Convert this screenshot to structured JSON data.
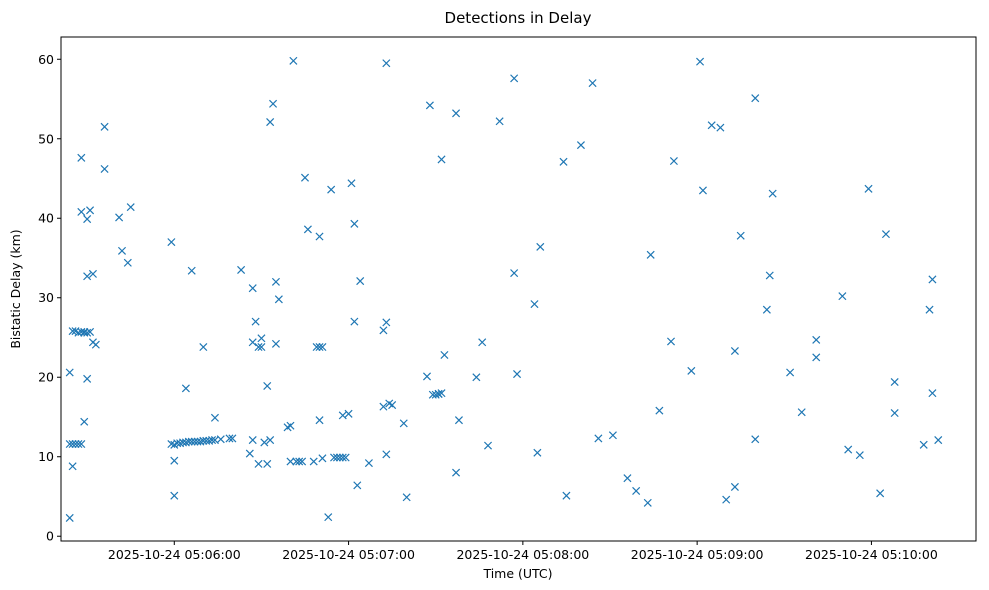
{
  "chart_data": {
    "type": "scatter",
    "title": "Detections in Delay",
    "xlabel": "Time (UTC)",
    "ylabel": "Bistatic Delay (km)",
    "x_tick_labels": [
      "2025-10-24 05:06:00",
      "2025-10-24 05:07:00",
      "2025-10-24 05:08:00",
      "2025-10-24 05:09:00",
      "2025-10-24 05:10:00"
    ],
    "x_ticks": [
      "05:06:00",
      "05:07:00",
      "05:08:00",
      "05:09:00",
      "05:10:00"
    ],
    "y_ticks": [
      0,
      10,
      20,
      30,
      40,
      50,
      60
    ],
    "xlim": [
      "05:05:21",
      "05:10:36"
    ],
    "ylim": [
      -0.6,
      62.8
    ],
    "grid": false,
    "marker": "x",
    "color": "#1f77b4",
    "series": [
      {
        "points": [
          [
            "05:05:24",
            2.3
          ],
          [
            "05:05:24",
            20.6
          ],
          [
            "05:05:24",
            11.6
          ],
          [
            "05:05:25",
            8.8
          ],
          [
            "05:05:25",
            25.8
          ],
          [
            "05:05:25",
            11.6
          ],
          [
            "05:05:26",
            11.6
          ],
          [
            "05:05:26",
            25.8
          ],
          [
            "05:05:27",
            11.6
          ],
          [
            "05:05:27",
            25.6
          ],
          [
            "05:05:28",
            47.6
          ],
          [
            "05:05:28",
            11.6
          ],
          [
            "05:05:28",
            25.7
          ],
          [
            "05:05:28",
            40.8
          ],
          [
            "05:05:29",
            25.7
          ],
          [
            "05:05:29",
            14.4
          ],
          [
            "05:05:29",
            25.6
          ],
          [
            "05:05:30",
            19.8
          ],
          [
            "05:05:30",
            39.9
          ],
          [
            "05:05:30",
            32.7
          ],
          [
            "05:05:30",
            25.6
          ],
          [
            "05:05:31",
            41.0
          ],
          [
            "05:05:31",
            25.7
          ],
          [
            "05:05:32",
            33.0
          ],
          [
            "05:05:32",
            24.4
          ],
          [
            "05:05:33",
            24.1
          ],
          [
            "05:05:36",
            51.5
          ],
          [
            "05:05:36",
            46.2
          ],
          [
            "05:05:41",
            40.1
          ],
          [
            "05:05:42",
            35.9
          ],
          [
            "05:05:44",
            34.4
          ],
          [
            "05:05:45",
            41.4
          ],
          [
            "05:05:59",
            37.0
          ],
          [
            "05:05:59",
            11.6
          ],
          [
            "05:06:00",
            5.1
          ],
          [
            "05:06:00",
            9.5
          ],
          [
            "05:06:00",
            11.5
          ],
          [
            "05:06:01",
            11.7
          ],
          [
            "05:06:02",
            11.7
          ],
          [
            "05:06:03",
            11.8
          ],
          [
            "05:06:04",
            18.6
          ],
          [
            "05:06:04",
            11.8
          ],
          [
            "05:06:05",
            11.9
          ],
          [
            "05:06:06",
            33.4
          ],
          [
            "05:06:06",
            11.9
          ],
          [
            "05:06:07",
            11.9
          ],
          [
            "05:06:08",
            11.9
          ],
          [
            "05:06:09",
            11.9
          ],
          [
            "05:06:10",
            23.8
          ],
          [
            "05:06:10",
            12.0
          ],
          [
            "05:06:11",
            12.0
          ],
          [
            "05:06:12",
            12.0
          ],
          [
            "05:06:13",
            12.1
          ],
          [
            "05:06:14",
            12.1
          ],
          [
            "05:06:14",
            14.9
          ],
          [
            "05:06:16",
            12.2
          ],
          [
            "05:06:19",
            12.3
          ],
          [
            "05:06:20",
            12.3
          ],
          [
            "05:06:23",
            33.5
          ],
          [
            "05:06:26",
            10.4
          ],
          [
            "05:06:27",
            31.2
          ],
          [
            "05:06:27",
            24.4
          ],
          [
            "05:06:27",
            12.1
          ],
          [
            "05:06:28",
            27.0
          ],
          [
            "05:06:29",
            9.1
          ],
          [
            "05:06:29",
            23.8
          ],
          [
            "05:06:30",
            23.8
          ],
          [
            "05:06:30",
            24.9
          ],
          [
            "05:06:31",
            11.8
          ],
          [
            "05:06:32",
            18.9
          ],
          [
            "05:06:32",
            9.1
          ],
          [
            "05:06:33",
            52.1
          ],
          [
            "05:06:33",
            12.1
          ],
          [
            "05:06:34",
            54.4
          ],
          [
            "05:06:35",
            32.0
          ],
          [
            "05:06:35",
            24.2
          ],
          [
            "05:06:36",
            29.8
          ],
          [
            "05:06:39",
            13.7
          ],
          [
            "05:06:40",
            9.4
          ],
          [
            "05:06:40",
            13.9
          ],
          [
            "05:06:41",
            59.8
          ],
          [
            "05:06:42",
            9.4
          ],
          [
            "05:06:43",
            9.4
          ],
          [
            "05:06:44",
            9.4
          ],
          [
            "05:06:45",
            45.1
          ],
          [
            "05:06:46",
            38.6
          ],
          [
            "05:06:48",
            9.4
          ],
          [
            "05:06:49",
            23.8
          ],
          [
            "05:06:50",
            37.7
          ],
          [
            "05:06:50",
            23.8
          ],
          [
            "05:06:50",
            14.6
          ],
          [
            "05:06:51",
            23.8
          ],
          [
            "05:06:51",
            9.8
          ],
          [
            "05:06:53",
            2.4
          ],
          [
            "05:06:54",
            43.6
          ],
          [
            "05:06:55",
            9.9
          ],
          [
            "05:06:56",
            9.9
          ],
          [
            "05:06:57",
            9.9
          ],
          [
            "05:06:58",
            9.9
          ],
          [
            "05:06:58",
            15.2
          ],
          [
            "05:06:59",
            9.9
          ],
          [
            "05:07:00",
            15.4
          ],
          [
            "05:07:01",
            44.4
          ],
          [
            "05:07:02",
            39.3
          ],
          [
            "05:07:02",
            27.0
          ],
          [
            "05:07:03",
            6.4
          ],
          [
            "05:07:04",
            32.1
          ],
          [
            "05:07:07",
            9.2
          ],
          [
            "05:07:12",
            16.3
          ],
          [
            "05:07:12",
            25.9
          ],
          [
            "05:07:13",
            10.3
          ],
          [
            "05:07:13",
            26.9
          ],
          [
            "05:07:13",
            59.5
          ],
          [
            "05:07:14",
            16.7
          ],
          [
            "05:07:15",
            16.5
          ],
          [
            "05:07:19",
            14.2
          ],
          [
            "05:07:20",
            4.9
          ],
          [
            "05:07:27",
            20.1
          ],
          [
            "05:07:28",
            54.2
          ],
          [
            "05:07:29",
            17.8
          ],
          [
            "05:07:30",
            17.8
          ],
          [
            "05:07:31",
            17.9
          ],
          [
            "05:07:31",
            17.9
          ],
          [
            "05:07:32",
            18.0
          ],
          [
            "05:07:32",
            47.4
          ],
          [
            "05:07:33",
            22.8
          ],
          [
            "05:07:37",
            8.0
          ],
          [
            "05:07:37",
            53.2
          ],
          [
            "05:07:38",
            14.6
          ],
          [
            "05:07:44",
            20.0
          ],
          [
            "05:07:46",
            24.4
          ],
          [
            "05:07:48",
            11.4
          ],
          [
            "05:07:52",
            52.2
          ],
          [
            "05:07:57",
            33.1
          ],
          [
            "05:07:57",
            57.6
          ],
          [
            "05:07:58",
            20.4
          ],
          [
            "05:08:04",
            29.2
          ],
          [
            "05:08:05",
            10.5
          ],
          [
            "05:08:06",
            36.4
          ],
          [
            "05:08:14",
            47.1
          ],
          [
            "05:08:15",
            5.1
          ],
          [
            "05:08:20",
            49.2
          ],
          [
            "05:08:24",
            57.0
          ],
          [
            "05:08:26",
            12.3
          ],
          [
            "05:08:31",
            12.7
          ],
          [
            "05:08:36",
            7.3
          ],
          [
            "05:08:39",
            5.7
          ],
          [
            "05:08:43",
            4.2
          ],
          [
            "05:08:44",
            35.4
          ],
          [
            "05:08:47",
            15.8
          ],
          [
            "05:08:51",
            24.5
          ],
          [
            "05:08:52",
            47.2
          ],
          [
            "05:08:58",
            20.8
          ],
          [
            "05:09:01",
            59.7
          ],
          [
            "05:09:02",
            43.5
          ],
          [
            "05:09:05",
            51.7
          ],
          [
            "05:09:08",
            51.4
          ],
          [
            "05:09:10",
            4.6
          ],
          [
            "05:09:13",
            6.2
          ],
          [
            "05:09:13",
            23.3
          ],
          [
            "05:09:15",
            37.8
          ],
          [
            "05:09:20",
            12.2
          ],
          [
            "05:09:20",
            55.1
          ],
          [
            "05:09:24",
            28.5
          ],
          [
            "05:09:25",
            32.8
          ],
          [
            "05:09:26",
            43.1
          ],
          [
            "05:09:32",
            20.6
          ],
          [
            "05:09:36",
            15.6
          ],
          [
            "05:09:41",
            22.5
          ],
          [
            "05:09:41",
            24.7
          ],
          [
            "05:09:50",
            30.2
          ],
          [
            "05:09:52",
            10.9
          ],
          [
            "05:09:56",
            10.2
          ],
          [
            "05:09:59",
            43.7
          ],
          [
            "05:10:03",
            5.4
          ],
          [
            "05:10:05",
            38.0
          ],
          [
            "05:10:08",
            19.4
          ],
          [
            "05:10:08",
            15.5
          ],
          [
            "05:10:18",
            11.5
          ],
          [
            "05:10:20",
            28.5
          ],
          [
            "05:10:21",
            32.3
          ],
          [
            "05:10:21",
            18.0
          ],
          [
            "05:10:23",
            12.1
          ]
        ]
      }
    ]
  }
}
